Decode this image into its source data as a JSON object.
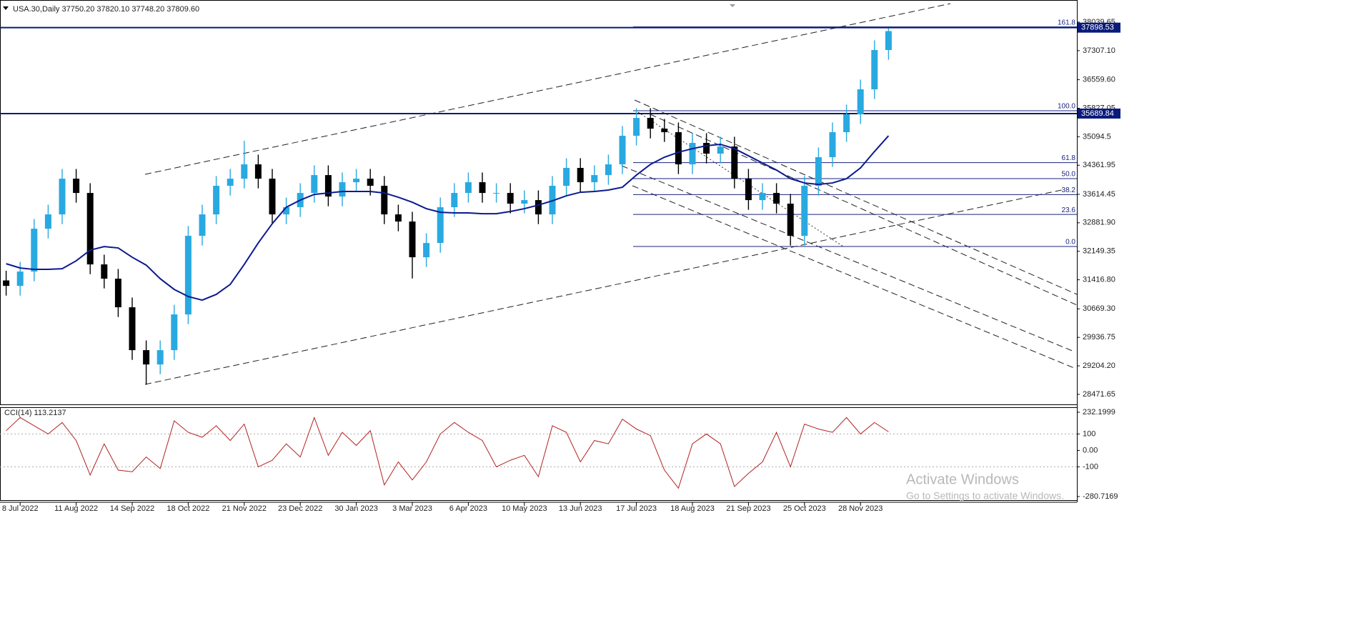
{
  "chart_data": {
    "type": "candlestick",
    "title": "USA.30,Daily 37750.20 37820.10 37748.20 37809.60",
    "categories": [
      null,
      "8 Jul 2022",
      null,
      null,
      null,
      "11 Aug 2022",
      null,
      null,
      null,
      "14 Sep 2022",
      null,
      null,
      null,
      "18 Oct 2022",
      null,
      null,
      null,
      "21 Nov 2022",
      null,
      null,
      null,
      "23 Dec 2022",
      null,
      null,
      null,
      "30 Jan 2023",
      null,
      null,
      null,
      "3 Mar 2023",
      null,
      null,
      null,
      "6 Apr 2023",
      null,
      null,
      null,
      "10 May 2023",
      null,
      null,
      null,
      "13 Jun 2023",
      null,
      null,
      null,
      "17 Jul 2023",
      null,
      null,
      null,
      "18 Aug 2023",
      null,
      null,
      null,
      "21 Sep 2023",
      null,
      null,
      null,
      "25 Oct 2023",
      null,
      null,
      null,
      "28 Nov 2023",
      null,
      null
    ],
    "open": [
      31400,
      31260,
      31628,
      32730,
      33098,
      34016,
      33649,
      31812,
      31445,
      30710,
      29608,
      29240,
      29608,
      30526,
      32547,
      33098,
      33833,
      34016,
      34384,
      34016,
      33098,
      33282,
      33649,
      34108,
      33557,
      33925,
      34016,
      33833,
      33098,
      32914,
      31996,
      32363,
      33282,
      33649,
      33925,
      33649,
      33649,
      33374,
      33465,
      33098,
      33833,
      34292,
      33925,
      34108,
      34384,
      35119,
      35578,
      35302,
      35211,
      34384,
      34935,
      34659,
      34843,
      34016,
      33465,
      33649,
      33374,
      32547,
      33833,
      34568,
      35211,
      35670,
      36313,
      37323
    ],
    "high": [
      31650,
      31878,
      32980,
      33348,
      34266,
      34266,
      33899,
      32062,
      31695,
      30960,
      29858,
      29858,
      30776,
      32797,
      33348,
      34083,
      34266,
      34990,
      34634,
      34266,
      33532,
      33899,
      34358,
      34358,
      34175,
      34266,
      34266,
      34083,
      33348,
      33164,
      32613,
      33532,
      33899,
      34175,
      34175,
      33899,
      33899,
      33715,
      33715,
      34083,
      34542,
      34542,
      34358,
      34634,
      35369,
      35828,
      35828,
      35552,
      35461,
      35185,
      35185,
      35093,
      35093,
      34266,
      33899,
      33899,
      33624,
      34083,
      34818,
      35461,
      35920,
      36563,
      37573,
      37880
    ],
    "low": [
      31010,
      31010,
      31378,
      32480,
      32848,
      33399,
      31562,
      31195,
      30460,
      29358,
      28720,
      28990,
      29358,
      30276,
      32297,
      32848,
      33583,
      33766,
      33766,
      32848,
      32848,
      33032,
      33399,
      33307,
      33307,
      33675,
      33583,
      32848,
      32664,
      31450,
      31746,
      32113,
      33032,
      33399,
      33399,
      33399,
      33124,
      33124,
      32848,
      32848,
      33583,
      33675,
      33675,
      33858,
      34134,
      34869,
      35052,
      34961,
      34134,
      34134,
      34409,
      34409,
      33766,
      33215,
      33215,
      33124,
      32297,
      32297,
      33583,
      34318,
      34961,
      35420,
      36063,
      37073
    ],
    "close": [
      31260,
      31628,
      32730,
      33098,
      34016,
      33649,
      31812,
      31445,
      30710,
      29608,
      29240,
      29608,
      30526,
      32547,
      33098,
      33833,
      34016,
      34384,
      34016,
      33098,
      33282,
      33649,
      34108,
      33557,
      33925,
      34016,
      33833,
      33098,
      32914,
      31996,
      32363,
      33282,
      33649,
      33925,
      33649,
      33649,
      33374,
      33465,
      33098,
      33833,
      34292,
      33925,
      34108,
      34384,
      35119,
      35578,
      35302,
      35211,
      34384,
      34935,
      34659,
      34843,
      34016,
      33465,
      33649,
      33374,
      32547,
      33833,
      34568,
      35211,
      35670,
      36313,
      37323,
      37809.6
    ],
    "up_color": "#29a9e1",
    "down_color": "#000000",
    "ylim": [
      28214,
      38609
    ],
    "yticks": [
      38039.65,
      {
        "value": 37307.1,
        "label": "37307.10"
      },
      {
        "value": 36559.6,
        "label": "36559.60"
      },
      35827.05,
      35094.5,
      34361.95,
      33614.45,
      {
        "value": 32881.9,
        "label": "32881.90"
      },
      32149.35,
      {
        "value": 31416.8,
        "label": "31416.80"
      },
      {
        "value": 30669.3,
        "label": "30669.30"
      },
      29936.75,
      {
        "value": 29204.2,
        "label": "29204.20"
      },
      28471.65
    ],
    "moving_average": {
      "color": "#0b1a8f",
      "values": [
        31830,
        31720,
        31684,
        31684,
        31702,
        31904,
        32180,
        32271,
        32235,
        31996,
        31794,
        31445,
        31169,
        30986,
        30894,
        31041,
        31298,
        31812,
        32363,
        32859,
        33282,
        33465,
        33612,
        33649,
        33686,
        33686,
        33686,
        33649,
        33539,
        33410,
        33245,
        33153,
        33135,
        33135,
        33116,
        33116,
        33172,
        33245,
        33337,
        33447,
        33576,
        33667,
        33686,
        33723,
        33796,
        34108,
        34384,
        34568,
        34696,
        34788,
        34862,
        34898,
        34788,
        34604,
        34420,
        34237,
        34016,
        33906,
        33869,
        33906,
        34016,
        34292,
        34715,
        35119
      ]
    },
    "price_lines": [
      37898.53,
      35689.84
    ],
    "price_line_color": "#0a1a7a",
    "fibonacci": {
      "color": "#1a237e",
      "levels": [
        {
          "value": 37918,
          "label": "161.8"
        },
        {
          "value": 35762,
          "label": "100.0"
        },
        {
          "value": 34429,
          "label": "61.8"
        },
        {
          "value": 34018,
          "label": "50.0"
        },
        {
          "value": 33606,
          "label": "38.2"
        },
        {
          "value": 33096,
          "label": "23.6"
        },
        {
          "value": 32273,
          "label": "0.0"
        }
      ]
    },
    "indicator": {
      "type": "line",
      "title": "CCI(14) 113.2137",
      "color": "#b22222",
      "values": [
        120,
        200,
        150,
        100,
        170,
        60,
        -150,
        40,
        -120,
        -130,
        -40,
        -110,
        180,
        110,
        80,
        150,
        60,
        160,
        -100,
        -60,
        40,
        -40,
        200,
        -30,
        110,
        30,
        120,
        -210,
        -70,
        -180,
        -70,
        100,
        170,
        110,
        60,
        -100,
        -60,
        -30,
        -160,
        150,
        110,
        -70,
        60,
        40,
        190,
        130,
        90,
        -120,
        -230,
        40,
        100,
        40,
        -220,
        -140,
        -70,
        110,
        -100,
        160,
        130,
        110,
        200,
        100,
        170,
        113.2137
      ],
      "ylim": [
        -280.7169,
        232.1999
      ],
      "yticks": [
        232.1999,
        100,
        {
          "value": 0,
          "label": "0.00"
        },
        -100,
        -280.7169
      ],
      "levels": [
        100,
        -100
      ]
    },
    "watermark": {
      "title": "Activate Windows",
      "subtitle": "Go to Settings to activate Windows."
    }
  }
}
